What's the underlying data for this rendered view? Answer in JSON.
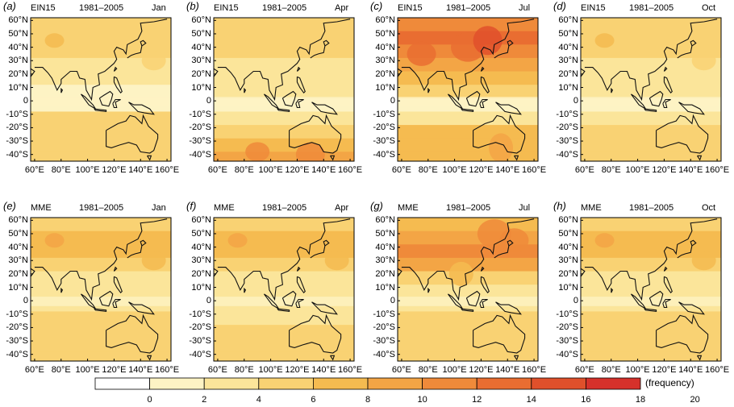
{
  "colors": {
    "bins": [
      "#ffffff",
      "#fdf3c4",
      "#fbe59a",
      "#f9d273",
      "#f5bb50",
      "#f3a545",
      "#ef8a3a",
      "#e96d31",
      "#e0502b",
      "#d6312b"
    ]
  },
  "lat_labels": [
    "60°N",
    "50°N",
    "40°N",
    "30°N",
    "20°N",
    "10°N",
    "0",
    "-10°S",
    "-20°S",
    "-30°S",
    "-40°S"
  ],
  "lon_labels": [
    "60°E",
    "80°E",
    "100°E",
    "120°E",
    "140°E",
    "160°E"
  ],
  "panels": [
    {
      "letter": "(a)",
      "model": "EIN15",
      "period": "1981–2005",
      "month": "Jan"
    },
    {
      "letter": "(b)",
      "model": "EIN15",
      "period": "1981–2005",
      "month": "Apr"
    },
    {
      "letter": "(c)",
      "model": "EIN15",
      "period": "1981–2005",
      "month": "Jul"
    },
    {
      "letter": "(d)",
      "model": "EIN15",
      "period": "1981–2005",
      "month": "Oct"
    },
    {
      "letter": "(e)",
      "model": "MME",
      "period": "1981–2005",
      "month": "Jan"
    },
    {
      "letter": "(f)",
      "model": "MME",
      "period": "1981–2005",
      "month": "Apr"
    },
    {
      "letter": "(g)",
      "model": "MME",
      "period": "1981–2005",
      "month": "Jul"
    },
    {
      "letter": "(h)",
      "model": "MME",
      "period": "1981–2005",
      "month": "Oct"
    }
  ],
  "colorbar": {
    "ticks": [
      "0",
      "2",
      "4",
      "6",
      "8",
      "10",
      "12",
      "14",
      "16",
      "18",
      "20"
    ],
    "unit": "(frequency)"
  }
}
